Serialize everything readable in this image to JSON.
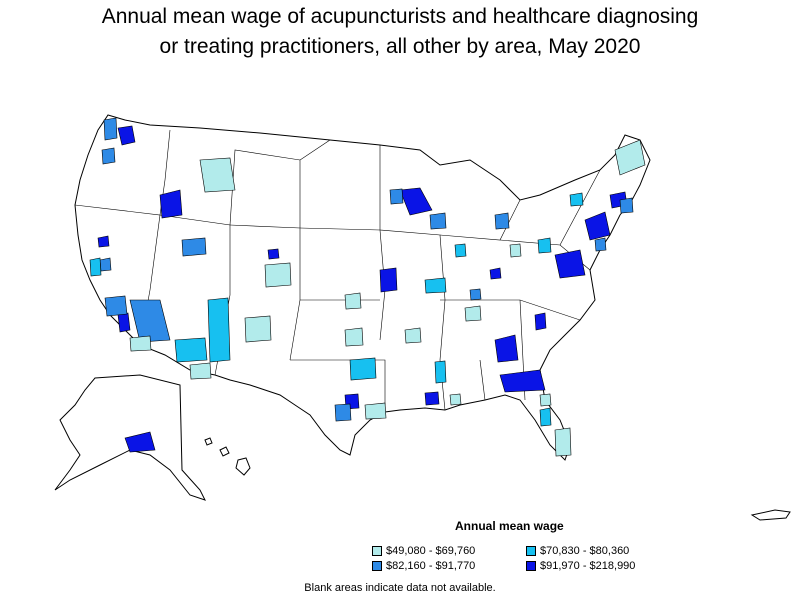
{
  "title_line1": "Annual mean wage of acupuncturists and healthcare diagnosing",
  "title_line2": "or treating practitioners, all other by area, May 2020",
  "legend": {
    "title": "Annual mean wage",
    "items": [
      {
        "label": "$49,080 - $69,760",
        "color": "#b2ebeb"
      },
      {
        "label": "$70,830 - $80,360",
        "color": "#17c0f0"
      },
      {
        "label": "$82,160 - $91,770",
        "color": "#2e8ae6"
      },
      {
        "label": "$91,970 - $218,990",
        "color": "#0a14e6"
      }
    ]
  },
  "footnote": "Blank areas indicate data not available.",
  "colors": {
    "tier1": "#b2ebeb",
    "tier2": "#17c0f0",
    "tier3": "#2e8ae6",
    "tier4": "#0a14e6",
    "blank": "#ffffff",
    "border": "#000000"
  }
}
